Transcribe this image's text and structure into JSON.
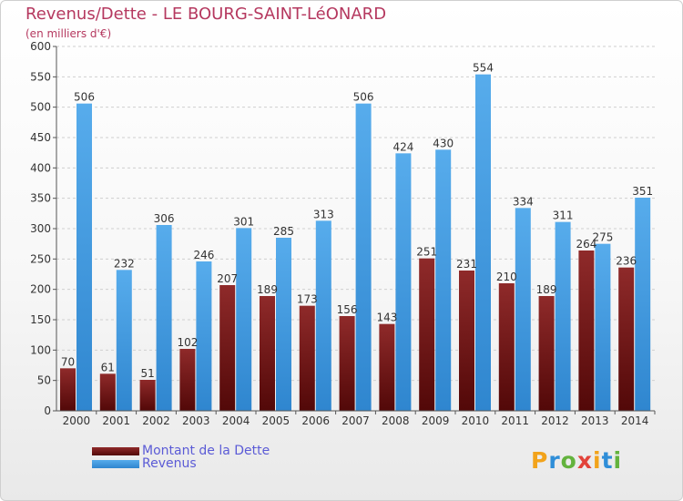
{
  "chart_data": {
    "type": "bar",
    "title": "Revenus/Dette - LE BOURG-SAINT-LéONARD",
    "subtitle": "(en milliers d'€)",
    "categories": [
      "2000",
      "2001",
      "2002",
      "2003",
      "2004",
      "2005",
      "2006",
      "2007",
      "2008",
      "2009",
      "2010",
      "2011",
      "2012",
      "2013",
      "2014"
    ],
    "series": [
      {
        "name": "Montant de la Dette",
        "values": [
          70,
          61,
          51,
          102,
          207,
          189,
          173,
          156,
          143,
          251,
          231,
          210,
          189,
          264,
          236
        ],
        "color": "#7a1a1a"
      },
      {
        "name": "Revenus",
        "values": [
          506,
          232,
          306,
          246,
          301,
          285,
          313,
          506,
          424,
          430,
          554,
          334,
          311,
          275,
          351
        ],
        "color": "#4fa3e6"
      }
    ],
    "yticks": [
      "0",
      "50",
      "100",
      "150",
      "200",
      "250",
      "300",
      "350",
      "400",
      "450",
      "500",
      "550",
      "600"
    ],
    "ylim": [
      0,
      600
    ],
    "grid": true,
    "legend_position": "bottom-left"
  },
  "logo": {
    "letters": [
      "P",
      "r",
      "o",
      "x",
      "i",
      "t",
      "i"
    ],
    "colors": [
      "#f2a31b",
      "#2f8ed8",
      "#63b33d",
      "#e2433a",
      "#f2a31b",
      "#2f8ed8",
      "#63b33d"
    ]
  }
}
